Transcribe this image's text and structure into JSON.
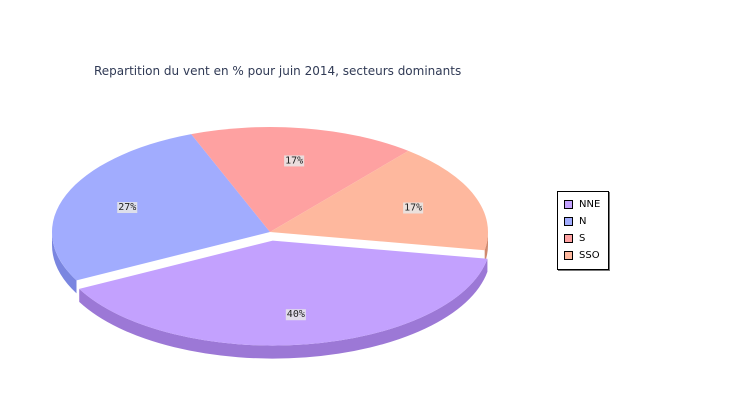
{
  "chart_data": {
    "type": "pie",
    "title": "Repartition du vent en % pour juin 2014, secteurs dominants",
    "categories": [
      "NNE",
      "N",
      "S",
      "SSO"
    ],
    "values": [
      40,
      27,
      17,
      17
    ],
    "value_labels": [
      "40%",
      "27%",
      "17%",
      "17%"
    ],
    "exploded": "NNE",
    "style": "3d",
    "legend_position": "right",
    "colors": {
      "NNE": "#c3a1fe",
      "N": "#a1acfe",
      "S": "#fea1a1",
      "SSO": "#feb89e"
    },
    "side_colors": {
      "NNE": "#9c78d6",
      "N": "#7a86e0",
      "S": "#d27e7e",
      "SSO": "#d08a6f"
    }
  }
}
